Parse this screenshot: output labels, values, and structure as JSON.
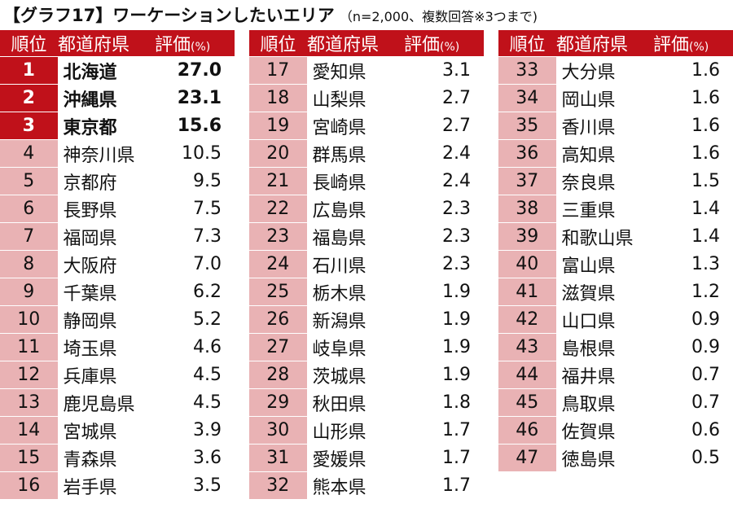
{
  "title": {
    "main": "【グラフ17】ワーケーションしたいエリア",
    "sub": "（n=2,000、複数回答※3つまで)"
  },
  "headers": {
    "rank": "順位",
    "pref": "都道府県",
    "val": "評価",
    "unit": "(%)"
  },
  "chart_data": {
    "type": "table",
    "columns": [
      "順位",
      "都道府県",
      "評価(%)"
    ],
    "rows": [
      {
        "rank": "1",
        "pref": "北海道",
        "val": "27.0"
      },
      {
        "rank": "2",
        "pref": "沖縄県",
        "val": "23.1"
      },
      {
        "rank": "3",
        "pref": "東京都",
        "val": "15.6"
      },
      {
        "rank": "4",
        "pref": "神奈川県",
        "val": "10.5"
      },
      {
        "rank": "5",
        "pref": "京都府",
        "val": "9.5"
      },
      {
        "rank": "6",
        "pref": "長野県",
        "val": "7.5"
      },
      {
        "rank": "7",
        "pref": "福岡県",
        "val": "7.3"
      },
      {
        "rank": "8",
        "pref": "大阪府",
        "val": "7.0"
      },
      {
        "rank": "9",
        "pref": "千葉県",
        "val": "6.2"
      },
      {
        "rank": "10",
        "pref": "静岡県",
        "val": "5.2"
      },
      {
        "rank": "11",
        "pref": "埼玉県",
        "val": "4.6"
      },
      {
        "rank": "12",
        "pref": "兵庫県",
        "val": "4.5"
      },
      {
        "rank": "13",
        "pref": "鹿児島県",
        "val": "4.5"
      },
      {
        "rank": "14",
        "pref": "宮城県",
        "val": "3.9"
      },
      {
        "rank": "15",
        "pref": "青森県",
        "val": "3.6"
      },
      {
        "rank": "16",
        "pref": "岩手県",
        "val": "3.5"
      },
      {
        "rank": "17",
        "pref": "愛知県",
        "val": "3.1"
      },
      {
        "rank": "18",
        "pref": "山梨県",
        "val": "2.7"
      },
      {
        "rank": "19",
        "pref": "宮崎県",
        "val": "2.7"
      },
      {
        "rank": "20",
        "pref": "群馬県",
        "val": "2.4"
      },
      {
        "rank": "21",
        "pref": "長崎県",
        "val": "2.4"
      },
      {
        "rank": "22",
        "pref": "広島県",
        "val": "2.3"
      },
      {
        "rank": "23",
        "pref": "福島県",
        "val": "2.3"
      },
      {
        "rank": "24",
        "pref": "石川県",
        "val": "2.3"
      },
      {
        "rank": "25",
        "pref": "栃木県",
        "val": "1.9"
      },
      {
        "rank": "26",
        "pref": "新潟県",
        "val": "1.9"
      },
      {
        "rank": "27",
        "pref": "岐阜県",
        "val": "1.9"
      },
      {
        "rank": "28",
        "pref": "茨城県",
        "val": "1.9"
      },
      {
        "rank": "29",
        "pref": "秋田県",
        "val": "1.8"
      },
      {
        "rank": "30",
        "pref": "山形県",
        "val": "1.7"
      },
      {
        "rank": "31",
        "pref": "愛媛県",
        "val": "1.7"
      },
      {
        "rank": "32",
        "pref": "熊本県",
        "val": "1.7"
      },
      {
        "rank": "33",
        "pref": "大分県",
        "val": "1.6"
      },
      {
        "rank": "34",
        "pref": "岡山県",
        "val": "1.6"
      },
      {
        "rank": "35",
        "pref": "香川県",
        "val": "1.6"
      },
      {
        "rank": "36",
        "pref": "高知県",
        "val": "1.6"
      },
      {
        "rank": "37",
        "pref": "奈良県",
        "val": "1.5"
      },
      {
        "rank": "38",
        "pref": "三重県",
        "val": "1.4"
      },
      {
        "rank": "39",
        "pref": "和歌山県",
        "val": "1.4"
      },
      {
        "rank": "40",
        "pref": "富山県",
        "val": "1.3"
      },
      {
        "rank": "41",
        "pref": "滋賀県",
        "val": "1.2"
      },
      {
        "rank": "42",
        "pref": "山口県",
        "val": "0.9"
      },
      {
        "rank": "43",
        "pref": "島根県",
        "val": "0.9"
      },
      {
        "rank": "44",
        "pref": "福井県",
        "val": "0.7"
      },
      {
        "rank": "45",
        "pref": "鳥取県",
        "val": "0.7"
      },
      {
        "rank": "46",
        "pref": "佐賀県",
        "val": "0.6"
      },
      {
        "rank": "47",
        "pref": "徳島県",
        "val": "0.5"
      }
    ]
  },
  "colors": {
    "header_red": "#c0111a",
    "rank_pink": "#e9b2b4",
    "highlight_text": "#ffffff"
  }
}
